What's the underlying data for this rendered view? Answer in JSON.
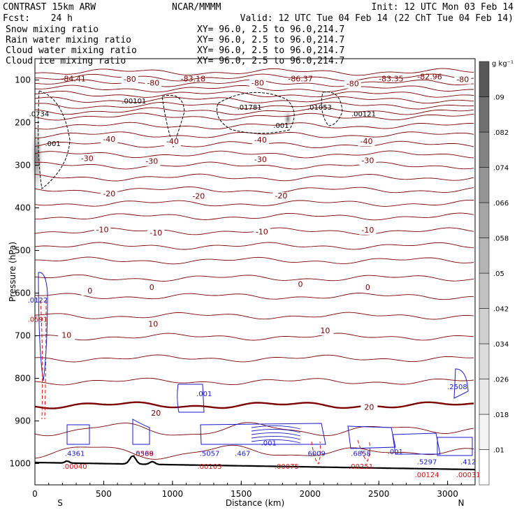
{
  "header": {
    "model": "CONTRAST 15km ARW",
    "center": "NCAR/MMMM",
    "init": "Init: 12 UTC Mon 03 Feb 14",
    "fcst_label": "Fcst:",
    "fcst_value": "24 h",
    "valid": "Valid: 12 UTC Tue 04 Feb 14 (22 ChT Tue 04 Feb 14)",
    "fields": [
      {
        "name": "Snow mixing ratio",
        "color": "#000000",
        "xy": "XY=  96.0,  2.5 to  96.0,214.7"
      },
      {
        "name": "Rain water mixing ratio",
        "color": "#dd1111",
        "xy": "XY=  96.0,  2.5 to  96.0,214.7"
      },
      {
        "name": "Cloud water mixing ratio",
        "color": "#1111cc",
        "xy": "XY=  96.0,  2.5 to  96.0,214.7"
      },
      {
        "name": "Cloud ice mixing ratio",
        "color": "#000000",
        "xy": "XY=  96.0,  2.5 to  96.0,214.7"
      }
    ]
  },
  "chart_data": {
    "type": "contour-cross-section",
    "xlabel": "Distance (km)",
    "ylabel": "Pressure (hPa)",
    "xlim": [
      0,
      3200
    ],
    "ylim": [
      1050,
      50
    ],
    "x_ticks": [
      "0",
      "500",
      "1000",
      "1500",
      "2000",
      "2500",
      "3000"
    ],
    "x_tick_values": [
      0,
      500,
      1000,
      1500,
      2000,
      2500,
      3000
    ],
    "y_ticks": [
      "100",
      "200",
      "300",
      "400",
      "500",
      "600",
      "700",
      "800",
      "900",
      "1000"
    ],
    "y_tick_values": [
      100,
      200,
      300,
      400,
      500,
      600,
      700,
      800,
      900,
      1000
    ],
    "x_end_labels": {
      "left": "S",
      "right": "N"
    },
    "colorbar": {
      "unit": "g kg⁻¹",
      "labels": [
        ".01",
        ".018",
        ".026",
        ".034",
        ".042",
        ".05",
        ".058",
        ".066",
        ".074",
        ".082",
        ".09"
      ],
      "levels": [
        0.01,
        0.018,
        0.026,
        0.034,
        0.042,
        0.05,
        0.058,
        0.066,
        0.074,
        0.082,
        0.09
      ],
      "colors": [
        "#ffffff",
        "#f4f4f4",
        "#e8e8e8",
        "#dcdcdc",
        "#cfcfcf",
        "#c2c2c2",
        "#b4b4b4",
        "#a5a5a5",
        "#959595",
        "#838383",
        "#707070",
        "#585858"
      ]
    },
    "temperature_labels": [
      {
        "text": "-80",
        "x": 690,
        "p": 104
      },
      {
        "text": "-80",
        "x": 860,
        "p": 113
      },
      {
        "text": "-80",
        "x": 1620,
        "p": 113
      },
      {
        "text": "-80",
        "x": 2310,
        "p": 115
      },
      {
        "text": "-80",
        "x": 3110,
        "p": 105
      },
      {
        "text": "-40",
        "x": 540,
        "p": 245
      },
      {
        "text": "-40",
        "x": 1000,
        "p": 250
      },
      {
        "text": "-40",
        "x": 1640,
        "p": 247
      },
      {
        "text": "-40",
        "x": 2410,
        "p": 250
      },
      {
        "text": "-30",
        "x": 380,
        "p": 290
      },
      {
        "text": "-30",
        "x": 850,
        "p": 297
      },
      {
        "text": "-30",
        "x": 1640,
        "p": 293
      },
      {
        "text": "-30",
        "x": 2420,
        "p": 295
      },
      {
        "text": "-20",
        "x": 540,
        "p": 373
      },
      {
        "text": "-20",
        "x": 1190,
        "p": 379
      },
      {
        "text": "-20",
        "x": 1790,
        "p": 378
      },
      {
        "text": "-10",
        "x": 490,
        "p": 457
      },
      {
        "text": "-10",
        "x": 880,
        "p": 465
      },
      {
        "text": "-10",
        "x": 1650,
        "p": 462
      },
      {
        "text": "-10",
        "x": 2420,
        "p": 458
      },
      {
        "text": "0",
        "x": 400,
        "p": 601
      },
      {
        "text": "0",
        "x": 850,
        "p": 593
      },
      {
        "text": "0",
        "x": 1930,
        "p": 585
      },
      {
        "text": "0",
        "x": 2420,
        "p": 593
      },
      {
        "text": "10",
        "x": 860,
        "p": 679
      },
      {
        "text": "10",
        "x": 230,
        "p": 705
      },
      {
        "text": "10",
        "x": 2110,
        "p": 694
      },
      {
        "text": "20",
        "x": 880,
        "p": 888
      },
      {
        "text": "20",
        "x": 2430,
        "p": 874
      }
    ],
    "temperature_extrema": [
      {
        "text": "-84.41",
        "x": 280,
        "p": 103
      },
      {
        "text": "-83.18",
        "x": 1150,
        "p": 103
      },
      {
        "text": "-86.37",
        "x": 1930,
        "p": 103
      },
      {
        "text": "-83.35",
        "x": 2590,
        "p": 103
      },
      {
        "text": "-82.96",
        "x": 2870,
        "p": 98
      }
    ],
    "ice_labels": [
      {
        "text": ".00101",
        "x": 720,
        "p": 155
      },
      {
        "text": ".01781",
        "x": 1560,
        "p": 170
      },
      {
        "text": ".01053",
        "x": 2070,
        "p": 170
      },
      {
        "text": ".00121",
        "x": 2390,
        "p": 185
      },
      {
        "text": ".001",
        "x": 1790,
        "p": 212
      },
      {
        "text": ".001",
        "x": 130,
        "p": 255
      },
      {
        "text": ".0734",
        "x": 30,
        "p": 185
      }
    ],
    "cloud_water_labels": [
      {
        "text": ".0122",
        "x": 20,
        "p": 622
      },
      {
        "text": ".001",
        "x": 1230,
        "p": 842
      },
      {
        "text": ".2508",
        "x": 3070,
        "p": 825
      },
      {
        "text": ".4361",
        "x": 290,
        "p": 982
      },
      {
        "text": ".5569",
        "x": 790,
        "p": 982
      },
      {
        "text": ".5057",
        "x": 1270,
        "p": 982
      },
      {
        "text": ".467",
        "x": 1510,
        "p": 982
      },
      {
        "text": ".001",
        "x": 1700,
        "p": 957
      },
      {
        "text": ".6009",
        "x": 2040,
        "p": 982
      },
      {
        "text": ".6858",
        "x": 2370,
        "p": 982
      },
      {
        "text": ".001",
        "x": 2620,
        "p": 978
      },
      {
        "text": ".5297",
        "x": 2850,
        "p": 1002
      },
      {
        "text": ".412",
        "x": 3150,
        "p": 1002
      }
    ],
    "rain_labels": [
      {
        "text": ".0591",
        "x": 20,
        "p": 667
      },
      {
        "text": ".00040",
        "x": 290,
        "p": 1012
      },
      {
        "text": ".0336",
        "x": 790,
        "p": 982
      },
      {
        "text": ".00103",
        "x": 1270,
        "p": 1012
      },
      {
        "text": ".00075",
        "x": 1830,
        "p": 1012
      },
      {
        "text": ".00251",
        "x": 2370,
        "p": 1012
      },
      {
        "text": ".00124",
        "x": 2850,
        "p": 1032
      },
      {
        "text": ".00031",
        "x": 3150,
        "p": 1032
      }
    ]
  }
}
